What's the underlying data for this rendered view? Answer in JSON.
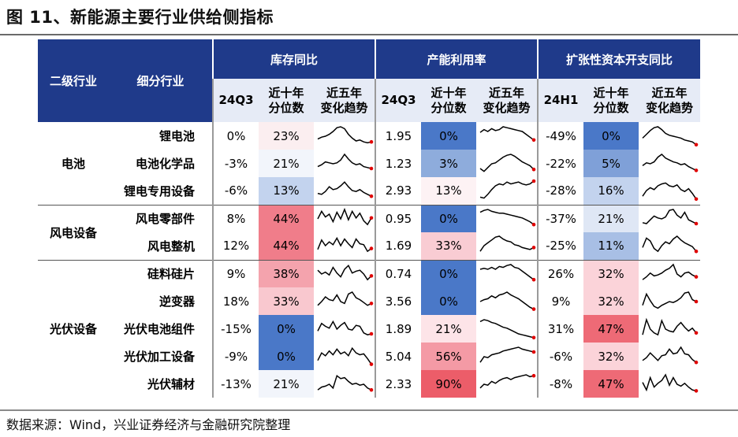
{
  "title": "图 11、新能源主要行业供给侧指标",
  "footer": "数据来源：Wind，兴业证券经济与金融研究院整理",
  "header": {
    "col_level2": "二级行业",
    "col_sub": "细分行业",
    "group_inventory": "库存同比",
    "group_capacity": "产能利用率",
    "group_capex": "扩张性资本开支同比",
    "inv_period": "24Q3",
    "cap_period": "24Q3",
    "capex_period": "24H1",
    "pct_label_1": "近十年",
    "pct_label_2": "分位数",
    "trend_label_1": "近五年",
    "trend_label_2": "变化趋势"
  },
  "groups": [
    {
      "name": "电池",
      "rows": [
        0,
        1,
        2
      ]
    },
    {
      "name": "风电设备",
      "rows": [
        3,
        4
      ]
    },
    {
      "name": "光伏设备",
      "rows": [
        5,
        6,
        7,
        8,
        9
      ]
    }
  ],
  "rows": [
    {
      "sub": "锂电池",
      "inv": "0%",
      "inv_pct": "23%",
      "cap": "1.95",
      "cap_pct": "0%",
      "capex": "-49%",
      "capex_pct": "0%",
      "inv_trend": [
        0.35,
        0.45,
        0.5,
        0.6,
        0.75,
        0.95,
        1,
        0.9,
        0.6,
        0.4,
        0.25,
        0.3,
        0.2,
        0.15,
        0.2
      ],
      "cap_trend": [
        0.7,
        0.85,
        0.75,
        0.9,
        0.8,
        0.85,
        1,
        0.95,
        0.9,
        0.85,
        0.8,
        0.75,
        0.6,
        0.45,
        0.3
      ],
      "capex_trend": [
        0.4,
        0.6,
        0.8,
        0.95,
        1,
        0.85,
        0.65,
        0.55,
        0.5,
        0.45,
        0.4,
        0.3,
        0.25,
        0.2,
        0.05
      ]
    },
    {
      "sub": "电池化学品",
      "inv": "-3%",
      "inv_pct": "21%",
      "cap": "1.23",
      "cap_pct": "3%",
      "capex": "-22%",
      "capex_pct": "5%",
      "inv_trend": [
        0.35,
        0.45,
        0.6,
        0.55,
        0.5,
        0.55,
        0.7,
        1,
        0.75,
        0.55,
        0.45,
        0.5,
        0.35,
        0.3,
        0.25
      ],
      "cap_trend": [
        0.25,
        0.1,
        0.3,
        0.5,
        0.55,
        0.7,
        0.85,
        0.95,
        1,
        0.9,
        0.75,
        0.6,
        0.5,
        0.4,
        0.2
      ],
      "capex_trend": [
        0.4,
        0.55,
        0.5,
        0.6,
        0.85,
        1,
        0.8,
        0.7,
        0.6,
        0.55,
        0.45,
        0.5,
        0.35,
        0.25,
        0.15
      ]
    },
    {
      "sub": "锂电专用设备",
      "inv": "-6%",
      "inv_pct": "13%",
      "cap": "2.93",
      "cap_pct": "13%",
      "capex": "-28%",
      "capex_pct": "16%",
      "inv_trend": [
        0.35,
        0.3,
        0.45,
        0.7,
        0.55,
        0.6,
        0.75,
        0.95,
        0.7,
        0.5,
        0.45,
        0.55,
        0.4,
        0.3,
        0.2
      ],
      "cap_trend": [
        0.15,
        0.1,
        0.3,
        0.55,
        0.75,
        0.85,
        0.8,
        0.95,
        0.85,
        0.9,
        0.95,
        0.85,
        0.8,
        0.85,
        1
      ],
      "capex_trend": [
        0.2,
        0.5,
        0.65,
        0.55,
        0.75,
        0.85,
        0.9,
        0.75,
        0.7,
        0.8,
        0.55,
        0.45,
        0.6,
        0.35,
        0.05
      ]
    },
    {
      "sub": "风电零部件",
      "inv": "8%",
      "inv_pct": "44%",
      "cap": "0.95",
      "cap_pct": "0%",
      "capex": "-37%",
      "capex_pct": "21%",
      "inv_trend": [
        0.5,
        0.9,
        0.6,
        0.75,
        0.35,
        0.85,
        0.5,
        1,
        0.45,
        0.9,
        0.55,
        0.8,
        0.4,
        0.2,
        0.55
      ],
      "cap_trend": [
        0.85,
        0.95,
        1,
        0.9,
        0.85,
        0.8,
        0.8,
        0.75,
        0.7,
        0.65,
        0.6,
        0.55,
        0.45,
        0.35,
        0.2
      ],
      "capex_trend": [
        0.3,
        0.25,
        0.45,
        0.65,
        0.55,
        0.5,
        0.6,
        0.95,
        1,
        0.7,
        0.55,
        0.85,
        0.45,
        0.35,
        0.25
      ]
    },
    {
      "sub": "风电整机",
      "inv": "12%",
      "inv_pct": "44%",
      "cap": "1.69",
      "cap_pct": "33%",
      "capex": "-25%",
      "capex_pct": "11%",
      "inv_trend": [
        0.3,
        0.8,
        0.5,
        0.7,
        0.55,
        0.9,
        0.5,
        0.85,
        0.6,
        0.4,
        0.85,
        0.6,
        0.55,
        0.2,
        0.35
      ],
      "cap_trend": [
        0.2,
        0.5,
        0.65,
        0.8,
        0.95,
        1,
        0.85,
        0.75,
        0.7,
        0.55,
        0.5,
        0.4,
        0.35,
        0.3,
        0.4
      ],
      "capex_trend": [
        0.4,
        0.9,
        0.75,
        0.35,
        0.2,
        0.5,
        0.7,
        0.6,
        0.85,
        1,
        0.8,
        0.65,
        0.55,
        0.45,
        0.2
      ]
    },
    {
      "sub": "硅料硅片",
      "inv": "9%",
      "inv_pct": "38%",
      "cap": "0.74",
      "cap_pct": "0%",
      "capex": "26%",
      "capex_pct": "32%",
      "inv_trend": [
        0.7,
        0.5,
        0.6,
        0.45,
        0.85,
        0.55,
        0.35,
        0.75,
        0.95,
        0.55,
        0.65,
        0.7,
        0.5,
        0.2,
        0.4
      ],
      "cap_trend": [
        0.75,
        0.8,
        0.75,
        0.85,
        0.75,
        0.9,
        0.85,
        0.95,
        1,
        0.85,
        0.8,
        0.65,
        0.5,
        0.35,
        0.2
      ],
      "capex_trend": [
        0.2,
        0.35,
        0.55,
        0.4,
        0.45,
        0.55,
        0.7,
        0.8,
        1,
        0.5,
        0.35,
        0.55,
        0.6,
        0.45,
        0.35
      ]
    },
    {
      "sub": "逆变器",
      "inv": "18%",
      "inv_pct": "33%",
      "cap": "3.56",
      "cap_pct": "0%",
      "capex": "9%",
      "capex_pct": "32%",
      "inv_trend": [
        0.3,
        0.5,
        0.75,
        0.6,
        0.55,
        0.85,
        0.5,
        0.4,
        0.9,
        1,
        0.7,
        0.6,
        0.45,
        0.3,
        0.4
      ],
      "cap_trend": [
        0.5,
        0.6,
        0.65,
        0.8,
        0.7,
        0.85,
        0.9,
        1,
        0.85,
        0.75,
        0.65,
        0.5,
        0.35,
        0.2,
        0.1
      ],
      "capex_trend": [
        0.3,
        0.9,
        0.55,
        0.25,
        0.15,
        0.3,
        0.4,
        0.5,
        0.45,
        0.55,
        0.7,
        0.95,
        1,
        0.6,
        0.5
      ]
    },
    {
      "sub": "光伏电池组件",
      "inv": "-15%",
      "inv_pct": "0%",
      "cap": "1.89",
      "cap_pct": "21%",
      "capex": "31%",
      "capex_pct": "47%",
      "inv_trend": [
        0.4,
        0.8,
        0.65,
        0.55,
        0.9,
        0.5,
        0.7,
        0.85,
        0.5,
        0.45,
        0.7,
        0.65,
        0.3,
        0.2,
        0.25
      ],
      "cap_trend": [
        0.9,
        1,
        0.95,
        0.85,
        0.8,
        0.7,
        0.6,
        0.55,
        0.45,
        0.35,
        0.25,
        0.2,
        0.15,
        0.1,
        0.05
      ],
      "capex_trend": [
        0.2,
        1,
        0.5,
        0.3,
        0.2,
        0.95,
        0.5,
        0.4,
        0.35,
        0.65,
        0.85,
        0.6,
        0.4,
        0.55,
        0.3
      ]
    },
    {
      "sub": "光伏加工设备",
      "inv": "-9%",
      "inv_pct": "0%",
      "cap": "5.04",
      "cap_pct": "56%",
      "capex": "-6%",
      "capex_pct": "32%",
      "inv_trend": [
        0.3,
        0.7,
        0.55,
        0.8,
        0.6,
        0.9,
        0.65,
        0.75,
        0.55,
        0.95,
        0.7,
        0.6,
        0.65,
        0.4,
        0.1
      ],
      "cap_trend": [
        0.2,
        0.5,
        0.45,
        0.6,
        0.65,
        0.7,
        0.8,
        0.85,
        0.9,
        0.95,
        1,
        0.9,
        0.85,
        0.8,
        0.75
      ],
      "capex_trend": [
        0.3,
        0.45,
        0.7,
        0.5,
        0.3,
        0.55,
        0.6,
        0.9,
        0.65,
        0.7,
        1,
        0.65,
        0.6,
        0.35,
        0.2
      ]
    },
    {
      "sub": "光伏辅材",
      "inv": "-13%",
      "inv_pct": "21%",
      "cap": "2.33",
      "cap_pct": "90%",
      "capex": "-8%",
      "capex_pct": "47%",
      "inv_trend": [
        0.2,
        0.35,
        0.4,
        0.5,
        0.3,
        0.95,
        0.8,
        0.85,
        0.65,
        0.5,
        0.55,
        0.45,
        0.5,
        0.3,
        0.2
      ],
      "cap_trend": [
        0.3,
        0.5,
        0.45,
        0.65,
        0.55,
        0.7,
        0.8,
        0.85,
        0.75,
        0.85,
        0.9,
        0.95,
        1,
        0.9,
        0.95
      ],
      "capex_trend": [
        0.6,
        0.2,
        0.85,
        0.35,
        0.55,
        0.7,
        1,
        0.45,
        0.85,
        0.5,
        0.4,
        0.55,
        0.35,
        0.2,
        0.15
      ]
    }
  ],
  "colors": {
    "header_bg": "#1f3a8a",
    "subheader_bg": "#e6ebf6",
    "trend_line": "#000000",
    "trend_end_dot": "#e00000"
  }
}
